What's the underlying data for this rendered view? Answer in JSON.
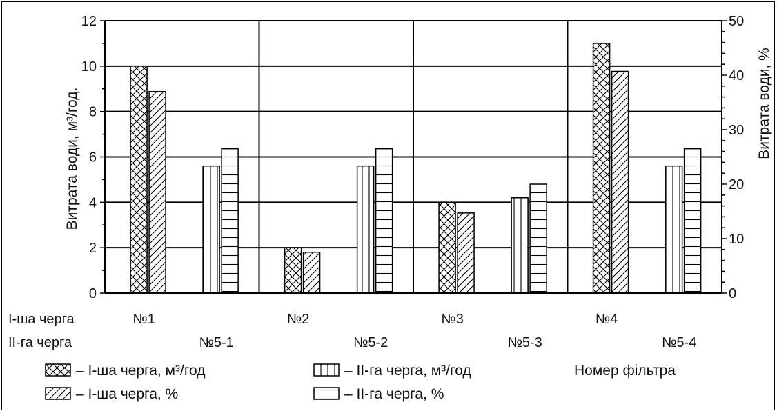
{
  "chart_data": {
    "type": "bar",
    "ylabel_left": "Витрата води, м³/год.",
    "ylabel_right": "Витрата води, %",
    "ylim_left": [
      0,
      12
    ],
    "ylim_right": [
      0,
      50
    ],
    "yticks_left": [
      "0",
      "2",
      "4",
      "6",
      "8",
      "10",
      "12"
    ],
    "yticks_right": [
      "0",
      "10",
      "20",
      "30",
      "40",
      "50"
    ],
    "grid": true,
    "row_labels": {
      "first": "І-ша черга",
      "second": "ІІ-га черга"
    },
    "xlabel": "Номер фільтра",
    "groups": [
      {
        "label": "№1",
        "row": "first",
        "values_m3": 10.0,
        "values_pct": 37
      },
      {
        "label": "№5-1",
        "row": "second",
        "values_m3": 5.6,
        "values_pct": 26.5
      },
      {
        "label": "№2",
        "row": "first",
        "values_m3": 2.0,
        "values_pct": 7.5
      },
      {
        "label": "№5-2",
        "row": "second",
        "values_m3": 5.6,
        "values_pct": 26.5
      },
      {
        "label": "№3",
        "row": "first",
        "values_m3": 4.0,
        "values_pct": 14.7
      },
      {
        "label": "№5-3",
        "row": "second",
        "values_m3": 4.2,
        "values_pct": 20
      },
      {
        "label": "№4",
        "row": "first",
        "values_m3": 11.0,
        "values_pct": 40.7
      },
      {
        "label": "№5-4",
        "row": "second",
        "values_m3": 5.6,
        "values_pct": 26.5
      }
    ],
    "series": [
      {
        "name": "– І-ша черга, м³/год",
        "pattern": "crosshatch"
      },
      {
        "name": "– І-ша черга, %",
        "pattern": "diagonal"
      },
      {
        "name": "– ІІ-га черга, м³/год",
        "pattern": "vertical"
      },
      {
        "name": "– ІІ-га черга, %",
        "pattern": "horizontal"
      }
    ]
  }
}
